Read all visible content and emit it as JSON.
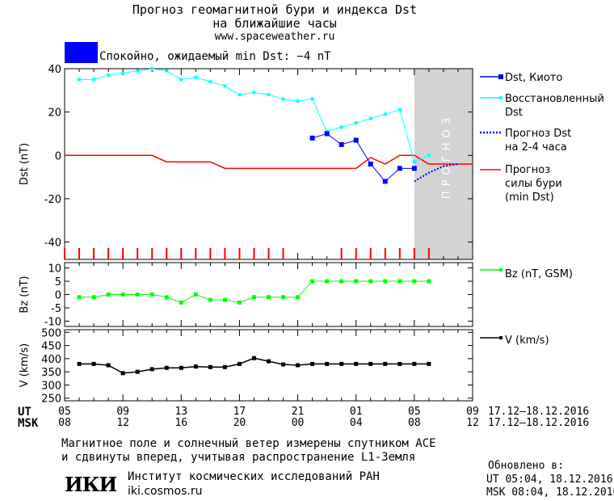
{
  "header": {
    "title_line1": "Прогноз геомагнитной бури и индекса Dst",
    "title_line2": "на ближайшие часы",
    "url": "www.spaceweather.ru"
  },
  "status": {
    "color": "#0000ff",
    "text": "Спокойно, ожидаемый min Dst: −4 nT"
  },
  "forecast_band_label": "ПРОГНОЗ",
  "legend": {
    "dst_kyoto": "Dst, Киото",
    "dst_restored_1": "Восстановленный",
    "dst_restored_2": "Dst",
    "dst_forecast_1": "Прогноз Dst",
    "dst_forecast_2": "на 2-4 часа",
    "storm_forecast_1": "Прогноз",
    "storm_forecast_2": "силы бури",
    "storm_forecast_3": "(min Dst)",
    "bz": "Bz (nT, GSM)",
    "v": "V (km/s)"
  },
  "time_axis": {
    "ut_label": "UT",
    "msk_label": "MSK",
    "ut_ticks": [
      "05",
      "09",
      "13",
      "17",
      "21",
      "01",
      "05",
      "09"
    ],
    "msk_ticks": [
      "08",
      "12",
      "16",
      "20",
      "00",
      "04",
      "08",
      "12"
    ],
    "ut_range": "17.12–18.12.2016",
    "msk_range": "17.12–18.12.2016"
  },
  "chart_data": [
    {
      "type": "line",
      "ylabel": "Dst (nT)",
      "ylim": [
        -48,
        40
      ],
      "yticks": [
        40,
        20,
        0,
        -20,
        -40
      ],
      "x_unit": "hours",
      "x_range": [
        5,
        33
      ],
      "forecast_region": [
        29,
        33
      ],
      "series": [
        {
          "name": "Dst, Киото",
          "color": "#0000ff",
          "x": [
            22,
            23,
            24,
            25,
            26,
            27,
            28,
            29
          ],
          "y": [
            8,
            10,
            5,
            7,
            -4,
            -12,
            -6,
            -6
          ]
        },
        {
          "name": "Восстановленный Dst",
          "color": "#00ffff",
          "x": [
            6,
            7,
            8,
            9,
            10,
            11,
            12,
            13,
            14,
            15,
            16,
            17,
            18,
            19,
            20,
            21,
            22,
            23,
            24,
            25,
            26,
            27,
            28,
            29,
            30
          ],
          "y": [
            35,
            35,
            37,
            38,
            39,
            40,
            39,
            35,
            36,
            34,
            32,
            28,
            29,
            28,
            26,
            25,
            26,
            11,
            13,
            15,
            17,
            19,
            21,
            -3,
            0
          ]
        },
        {
          "name": "Прогноз Dst на 2-4 часа",
          "color": "#0000ff",
          "x": [
            29,
            30,
            31,
            32
          ],
          "y": [
            -12,
            -8,
            -5,
            -4
          ]
        },
        {
          "name": "Прогноз силы бури (min Dst)",
          "color": "#ff0000",
          "x": [
            5,
            11,
            12,
            15,
            16,
            22,
            25,
            26,
            27,
            28,
            29,
            30,
            33
          ],
          "y": [
            0,
            0,
            -3,
            -3,
            -6,
            -6,
            -6,
            -1,
            -4,
            0,
            0,
            -4,
            -4
          ]
        }
      ]
    },
    {
      "type": "line",
      "ylabel": "Bz (nT)",
      "ylim": [
        -12,
        12
      ],
      "yticks": [
        10,
        5,
        0,
        -5,
        -10
      ],
      "series": [
        {
          "name": "Bz (nT, GSM)",
          "color": "#00ff00",
          "x": [
            6,
            7,
            8,
            9,
            10,
            11,
            12,
            13,
            14,
            15,
            16,
            17,
            18,
            19,
            20,
            21,
            22,
            23,
            24,
            25,
            26,
            27,
            28,
            29,
            30
          ],
          "y": [
            -1,
            -1,
            0,
            0,
            0,
            0,
            -1,
            -3,
            0,
            -2,
            -2,
            -3,
            -1,
            -1,
            -1,
            -1,
            5,
            5,
            5,
            5,
            5,
            5,
            5,
            5,
            5
          ]
        }
      ]
    },
    {
      "type": "line",
      "ylabel": "V (km/s)",
      "ylim": [
        240,
        510
      ],
      "yticks": [
        500,
        450,
        400,
        350,
        300,
        250
      ],
      "series": [
        {
          "name": "V (km/s)",
          "color": "#000000",
          "x": [
            6,
            7,
            8,
            9,
            10,
            11,
            12,
            13,
            14,
            15,
            16,
            17,
            18,
            19,
            20,
            21,
            22,
            23,
            24,
            25,
            26,
            27,
            28,
            29,
            30
          ],
          "y": [
            380,
            380,
            375,
            345,
            350,
            360,
            365,
            365,
            370,
            368,
            368,
            380,
            402,
            390,
            378,
            375,
            380,
            380,
            380,
            380,
            380,
            380,
            380,
            380,
            380
          ]
        }
      ]
    }
  ],
  "footer": {
    "measure_line1": "Магнитное поле и солнечный ветер измерены спутником ACE",
    "measure_line2": "и сдвинуты вперед, учитывая распространение L1-Земля",
    "logo": "ИКИ",
    "institute": "Институт космических исследований РАН",
    "site": "iki.cosmos.ru",
    "updated_label": "Обновлено в:",
    "updated_ut": "UT  05:04, 18.12.2016",
    "updated_msk": "MSK 08:04, 18.12.2016"
  }
}
